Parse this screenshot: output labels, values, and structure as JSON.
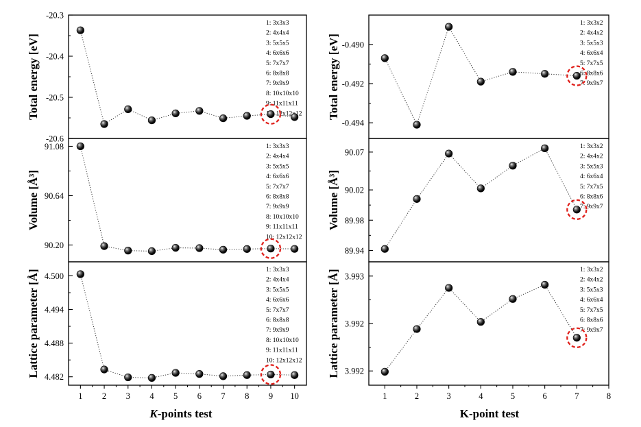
{
  "colors": {
    "marker": "#111111",
    "line": "#333333",
    "highlight": "#e0201b"
  },
  "chart_data": [
    {
      "type": "scatter",
      "panel": "left-top",
      "ylabel": "Total energy [eV]",
      "ylim": [
        -20.6,
        -20.3
      ],
      "yticks": [
        "-20.3",
        "-20.4",
        "-20.5",
        "-20.6"
      ],
      "ytick_values": [
        -20.3,
        -20.4,
        -20.5,
        -20.6
      ],
      "x": [
        1,
        2,
        3,
        4,
        5,
        6,
        7,
        8,
        9,
        10
      ],
      "y": [
        -20.337,
        -20.565,
        -20.529,
        -20.556,
        -20.539,
        -20.533,
        -20.551,
        -20.545,
        -20.541,
        -20.548
      ],
      "highlight_index": 8,
      "legend": [
        "1: 3x3x3",
        "2: 4x4x4",
        "3: 5x5x5",
        "4: 6x6x6",
        "5: 7x7x7",
        "6: 8x8x8",
        "7: 9x9x9",
        "8: 10x10x10",
        "9: 11x11x11",
        "10: 12x12x12"
      ]
    },
    {
      "type": "scatter",
      "panel": "left-middle",
      "ylabel": "Volume [Å³]",
      "ylim": [
        90.05,
        91.15
      ],
      "yticks": [
        "91.08",
        "90.64",
        "90.20"
      ],
      "ytick_values": [
        91.08,
        90.64,
        90.2
      ],
      "x": [
        1,
        2,
        3,
        4,
        5,
        6,
        7,
        8,
        9,
        10
      ],
      "y": [
        91.08,
        90.19,
        90.15,
        90.145,
        90.175,
        90.172,
        90.158,
        90.164,
        90.168,
        90.165
      ],
      "highlight_index": 8,
      "legend": [
        "1: 3x3x3",
        "2: 4x4x4",
        "3: 5x5x5",
        "4: 6x6x6",
        "5: 7x7x7",
        "6: 8x8x8",
        "7: 9x9x9",
        "8: 10x10x10",
        "9: 11x11x11",
        "10: 12x12x12"
      ]
    },
    {
      "type": "scatter",
      "panel": "left-bottom",
      "ylabel": "Lattice parameter [Å]",
      "xlabel": "K-points test",
      "ylim": [
        4.4805,
        4.5025
      ],
      "yticks": [
        "4.500",
        "4.494",
        "4.488",
        "4.482"
      ],
      "ytick_values": [
        4.5,
        4.494,
        4.488,
        4.482
      ],
      "xticks": [
        "1",
        "2",
        "3",
        "4",
        "5",
        "6",
        "7",
        "8",
        "9",
        "10"
      ],
      "x": [
        1,
        2,
        3,
        4,
        5,
        6,
        7,
        8,
        9,
        10
      ],
      "y": [
        4.5003,
        4.4833,
        4.4819,
        4.4818,
        4.4827,
        4.4825,
        4.4821,
        4.4823,
        4.4824,
        4.4823
      ],
      "highlight_index": 8,
      "legend": [
        "1: 3x3x3",
        "2: 4x4x4",
        "3: 5x5x5",
        "4: 6x6x6",
        "5: 7x7x7",
        "6: 8x8x8",
        "7: 9x9x9",
        "8: 10x10x10",
        "9: 11x11x11",
        "10: 12x12x12"
      ]
    },
    {
      "type": "scatter",
      "panel": "right-top",
      "ylabel": "Total energy [eV]",
      "ylim": [
        -0.4948,
        -0.4885
      ],
      "yticks": [
        "-0.490",
        "-0.492",
        "-0.494"
      ],
      "ytick_values": [
        -0.49,
        -0.492,
        -0.494
      ],
      "x": [
        1,
        2,
        3,
        4,
        5,
        6,
        7
      ],
      "y": [
        -0.4907,
        -0.4941,
        -0.4891,
        -0.4919,
        -0.4914,
        -0.4915,
        -0.4916
      ],
      "highlight_index": 6,
      "legend": [
        "1: 3x3x2",
        "2: 4x4x2",
        "3: 5x5x3",
        "4: 6x6x4",
        "5: 7x7x5",
        "6: 8x8x6",
        "7: 9x9x7"
      ]
    },
    {
      "type": "scatter",
      "panel": "right-middle",
      "ylabel": "Volume [Å³]",
      "ylim": [
        89.925,
        90.088
      ],
      "yticks": [
        "90.07",
        "90.02",
        "89.98",
        "89.94"
      ],
      "ytick_values": [
        90.07,
        90.02,
        89.98,
        89.94
      ],
      "x": [
        1,
        2,
        3,
        4,
        5,
        6,
        7
      ],
      "y": [
        89.942,
        90.008,
        90.068,
        90.022,
        90.052,
        90.075,
        89.994
      ],
      "highlight_index": 6,
      "legend": [
        "1: 3x3x2",
        "2: 4x4x2",
        "3: 5x5x3",
        "4: 6x6x4",
        "5: 7x7x5",
        "6: 8x8x6",
        "7: 9x9x7"
      ]
    },
    {
      "type": "scatter",
      "panel": "right-bottom",
      "ylabel": "Lattice parameter [Å]",
      "xlabel": "K-point test",
      "ylim": [
        3.99182,
        3.99338
      ],
      "yticks": [
        "3.993",
        "3.992",
        "3.992"
      ],
      "ytick_values": [
        3.9932,
        3.9926,
        3.992
      ],
      "xticks": [
        "1",
        "2",
        "3",
        "4",
        "5",
        "6",
        "7",
        "8"
      ],
      "x": [
        1,
        2,
        3,
        4,
        5,
        6,
        7
      ],
      "y": [
        3.99199,
        3.99253,
        3.99305,
        3.99262,
        3.99291,
        3.99309,
        3.99242
      ],
      "highlight_index": 6,
      "legend": [
        "1: 3x3x2",
        "2: 4x4x2",
        "3: 5x5x3",
        "4: 6x6x4",
        "5: 7x7x5",
        "6: 8x8x6",
        "7: 9x9x7"
      ]
    }
  ]
}
